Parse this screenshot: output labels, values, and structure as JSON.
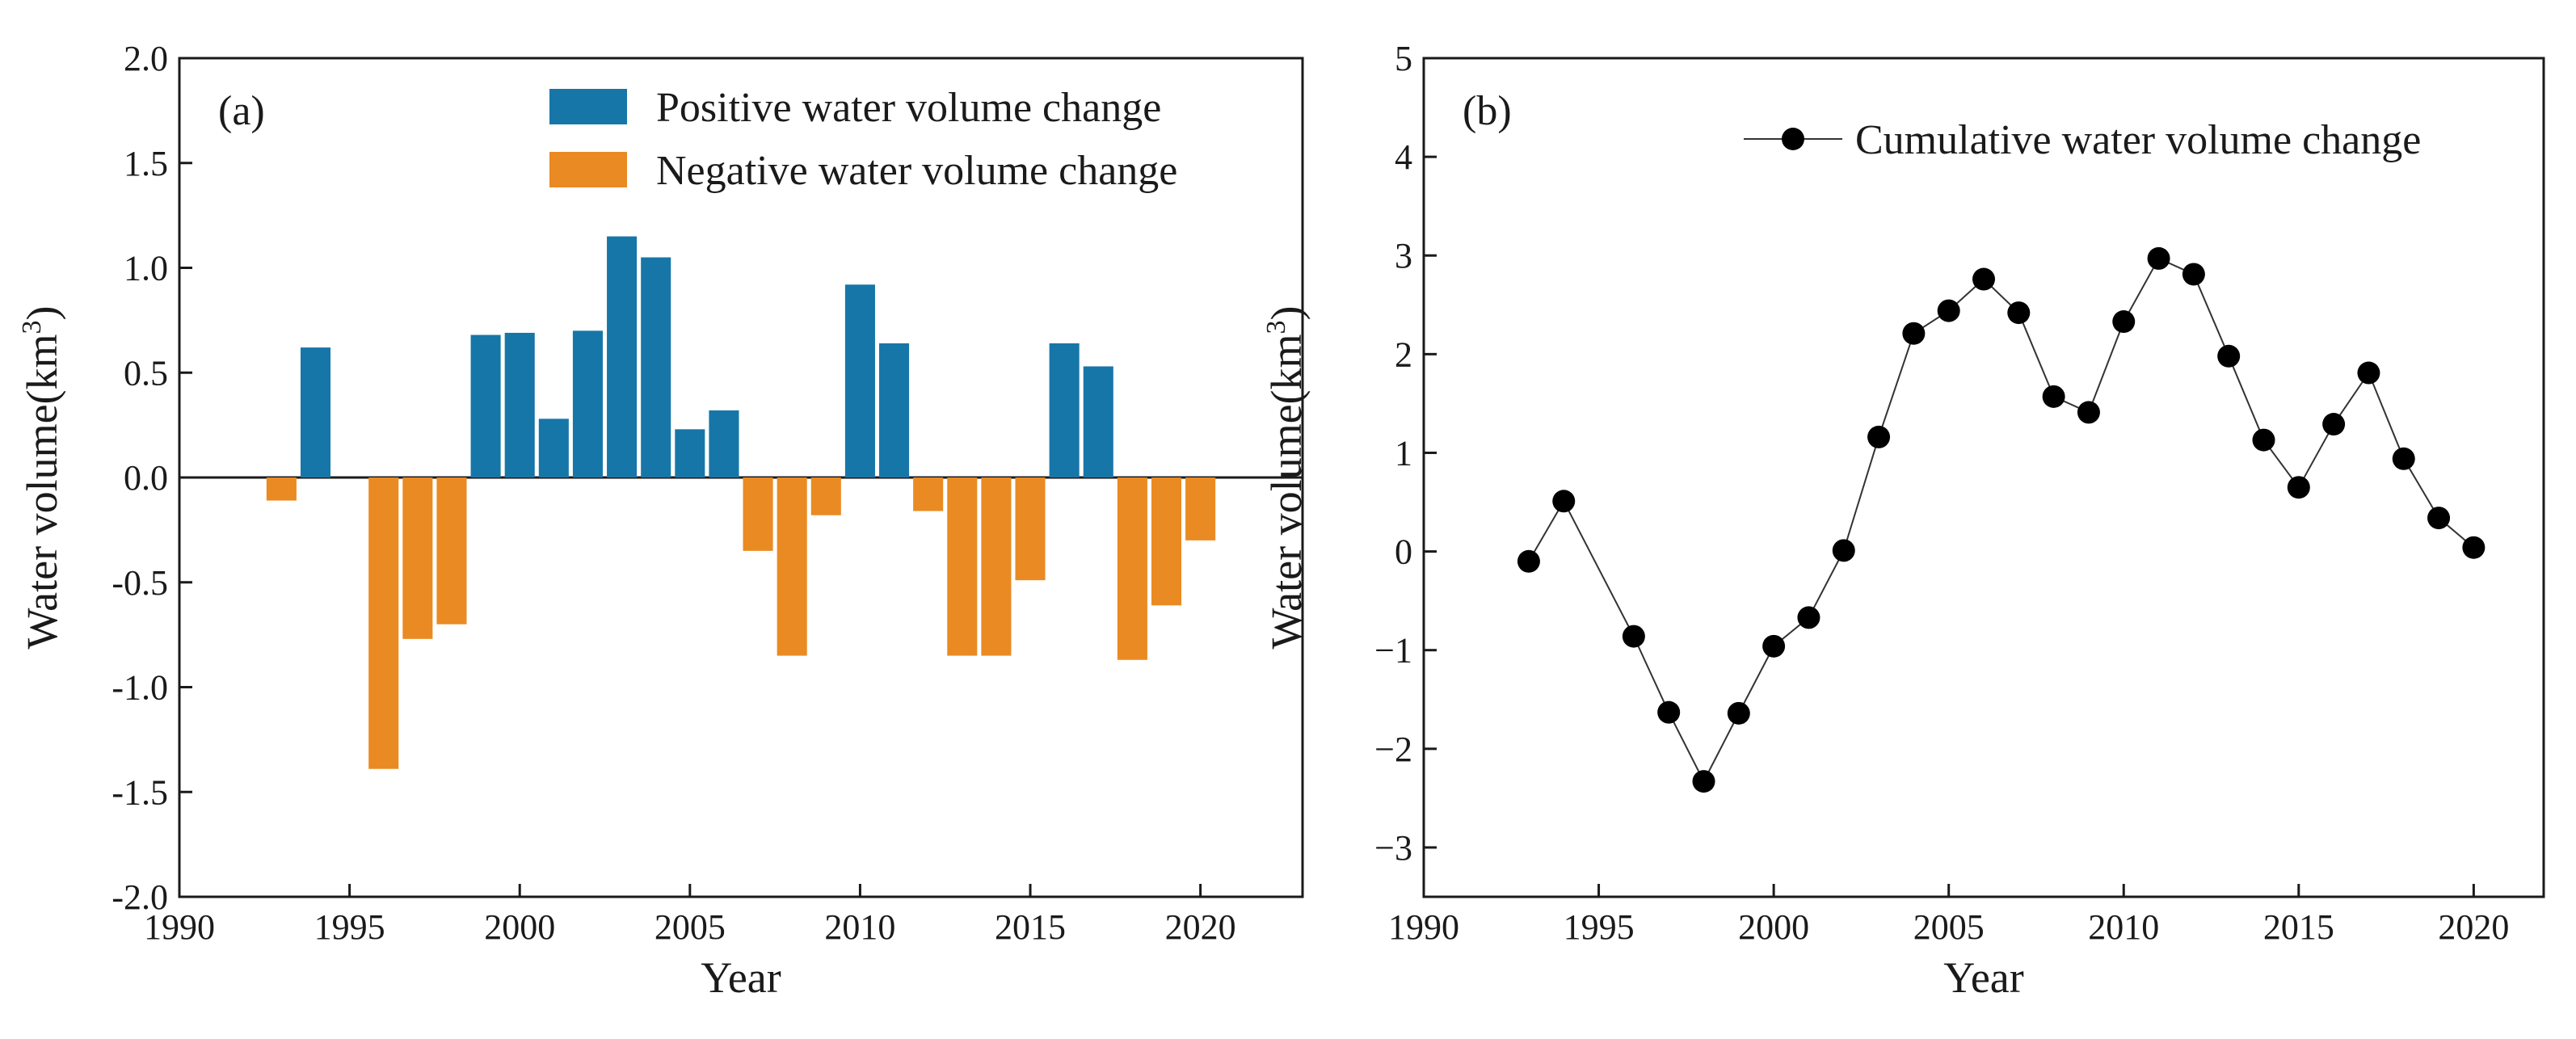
{
  "chart_data": [
    {
      "type": "bar",
      "panel_label": "(a)",
      "xlabel": "Year",
      "ylabel": "Water volume(km",
      "ylabel_sup": "3",
      "ylabel_close": ")",
      "xlim": [
        1990,
        2023
      ],
      "ylim": [
        -2.0,
        2.0
      ],
      "xticks": [
        1990,
        1995,
        2000,
        2005,
        2010,
        2015,
        2020
      ],
      "yticks": [
        "2.0",
        "1.5",
        "1.0",
        "0.5",
        "0.0",
        "-0.5",
        "-1.0",
        "-1.5",
        "-2.0"
      ],
      "ytick_values": [
        2.0,
        1.5,
        1.0,
        0.5,
        0.0,
        -0.5,
        -1.0,
        -1.5,
        -2.0
      ],
      "legend_position": "top-right",
      "series": [
        {
          "name": "Positive water volume change",
          "color": "#1776a8",
          "x": [
            1994,
            1999,
            2000,
            2001,
            2002,
            2003,
            2004,
            2005,
            2006,
            2010,
            2011,
            2016,
            2017
          ],
          "values": [
            0.62,
            0.68,
            0.69,
            0.28,
            0.7,
            1.15,
            1.05,
            0.23,
            0.32,
            0.92,
            0.64,
            0.64,
            0.53
          ]
        },
        {
          "name": "Negative water volume change",
          "color": "#ea8a22",
          "x": [
            1993,
            1996,
            1997,
            1998,
            2007,
            2008,
            2009,
            2012,
            2013,
            2014,
            2015,
            2018,
            2019,
            2020
          ],
          "values": [
            -0.11,
            -1.39,
            -0.77,
            -0.7,
            -0.35,
            -0.85,
            -0.18,
            -0.16,
            -0.85,
            -0.85,
            -0.49,
            -0.87,
            -0.61,
            -0.3
          ]
        }
      ]
    },
    {
      "type": "line",
      "panel_label": "(b)",
      "xlabel": "Year",
      "ylabel": "Water volume(km",
      "ylabel_sup": "3",
      "ylabel_close": ")",
      "xlim": [
        1990,
        2022
      ],
      "ylim": [
        -3.5,
        5
      ],
      "xticks": [
        1990,
        1995,
        2000,
        2005,
        2010,
        2015,
        2020
      ],
      "yticks": [
        "5",
        "4",
        "3",
        "2",
        "1",
        "0",
        "−1",
        "−2",
        "−3"
      ],
      "ytick_values": [
        5,
        4,
        3,
        2,
        1,
        0,
        -1,
        -2,
        -3
      ],
      "legend_position": "top-right",
      "series": [
        {
          "name": "Cumulative water volume change",
          "color": "#000000",
          "x": [
            1993,
            1994,
            1996,
            1997,
            1998,
            1999,
            2000,
            2001,
            2002,
            2003,
            2004,
            2005,
            2006,
            2007,
            2008,
            2009,
            2010,
            2011,
            2012,
            2013,
            2014,
            2015,
            2016,
            2017,
            2018,
            2019,
            2020
          ],
          "values": [
            -0.1,
            0.51,
            -0.86,
            -1.63,
            -2.33,
            -1.64,
            -0.96,
            -0.67,
            0.01,
            1.16,
            2.21,
            2.44,
            2.76,
            2.42,
            1.57,
            1.41,
            2.33,
            2.97,
            2.81,
            1.98,
            1.13,
            0.65,
            1.29,
            1.81,
            0.94,
            0.34,
            0.04
          ]
        }
      ]
    }
  ]
}
